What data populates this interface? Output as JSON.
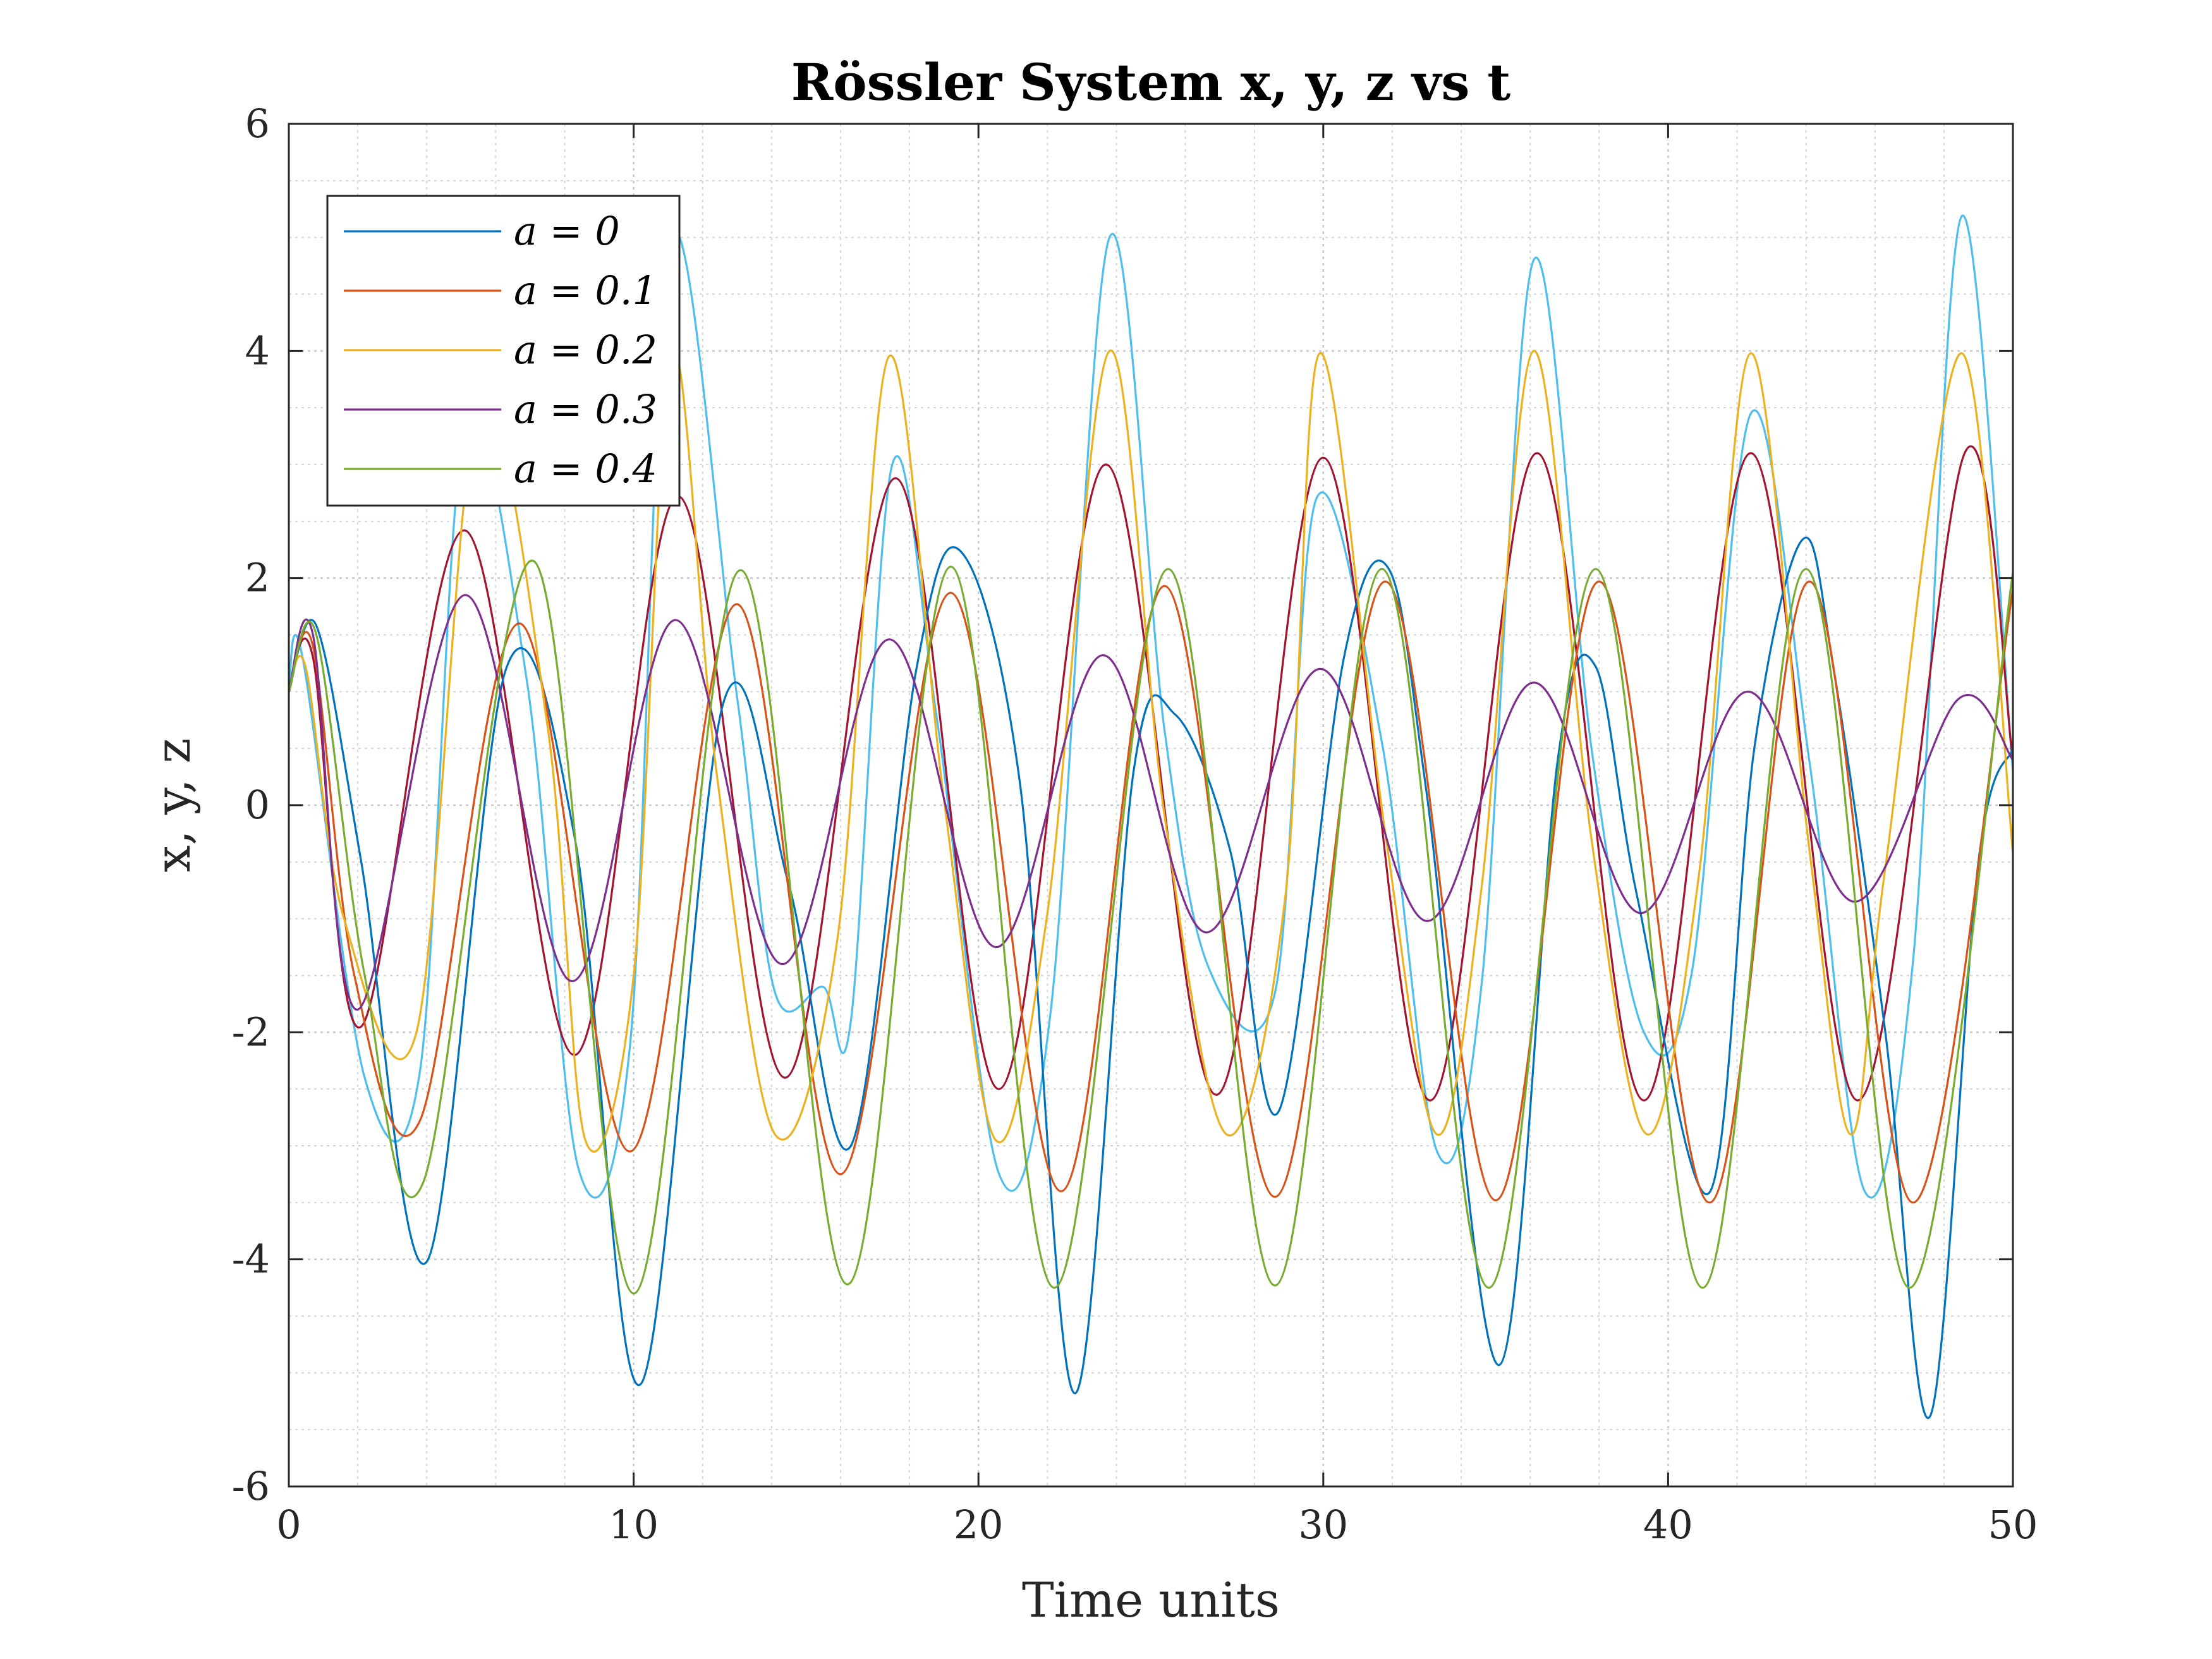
{
  "chart_data": {
    "type": "line",
    "title": "Rössler System x, y, z vs t",
    "xlabel": "Time units",
    "ylabel": "x, y, z",
    "xlim": [
      0,
      50
    ],
    "ylim": [
      -6,
      6
    ],
    "xticks": [
      0,
      10,
      20,
      30,
      40,
      50
    ],
    "yticks": [
      -6,
      -4,
      -2,
      0,
      2,
      4,
      6
    ],
    "xtick_labels": [
      "0",
      "10",
      "20",
      "30",
      "40",
      "50"
    ],
    "ytick_labels": [
      "-6",
      "-4",
      "-2",
      "0",
      "2",
      "4",
      "6"
    ],
    "grid": true,
    "minor_grid": true,
    "legend_position": "top-left",
    "series": [
      {
        "name": "a = 0",
        "color": "#0072BD",
        "type": "legend",
        "x": [
          0,
          0.8,
          2.1,
          4.0,
          6.3,
          8.3,
          10.2,
          12.6,
          14.5,
          16.3,
          18.2,
          19.5,
          21.2,
          22.8,
          24.5,
          25.7,
          27.3,
          28.7,
          30.6,
          31.9,
          33.0,
          35.1,
          36.8,
          37.9,
          39.1,
          41.2,
          42.5,
          43.9,
          44.8,
          46.3,
          47.6,
          49.0,
          50
        ],
        "values": [
          1.0,
          1.58,
          -0.5,
          -4.02,
          1.2,
          -0.3,
          -5.1,
          0.9,
          -0.7,
          -3.0,
          1.2,
          2.23,
          0.2,
          -5.18,
          0.3,
          0.8,
          -0.4,
          -2.7,
          1.3,
          2.08,
          0.1,
          -4.93,
          0.4,
          1.22,
          -0.8,
          -3.41,
          0.5,
          2.34,
          1.2,
          -2.0,
          -5.38,
          -0.5,
          0.5
        ]
      },
      {
        "name": "a = 0.1",
        "color": "#D95319",
        "type": "legend",
        "x": [
          0,
          0.7,
          1.9,
          3.8,
          6.7,
          9.9,
          13.0,
          16.0,
          19.2,
          22.4,
          25.4,
          28.6,
          31.8,
          35.0,
          38.0,
          41.2,
          44.1,
          47.1,
          50
        ],
        "values": [
          1.0,
          1.4,
          -1.5,
          -2.78,
          1.6,
          -3.05,
          1.77,
          -3.25,
          1.87,
          -3.4,
          1.93,
          -3.45,
          1.97,
          -3.48,
          1.97,
          -3.5,
          1.97,
          -3.5,
          1.9
        ]
      },
      {
        "name": "a = 0.2",
        "color": "#EDB120",
        "type": "legend",
        "x": [
          0,
          0.5,
          1.6,
          3.7,
          5.5,
          7.5,
          8.6,
          10.0,
          11.1,
          12.4,
          14.1,
          15.9,
          17.4,
          19.0,
          20.5,
          22.0,
          23.8,
          25.4,
          27.2,
          28.9,
          29.9,
          31.8,
          33.3,
          34.6,
          36.1,
          37.8,
          39.4,
          40.9,
          42.4,
          44.1,
          45.3,
          46.3,
          48.5,
          50
        ],
        "values": [
          1.0,
          1.2,
          -1.0,
          -2.0,
          3.5,
          0.7,
          -2.95,
          -1.5,
          4.0,
          0.3,
          -2.9,
          -1.2,
          3.95,
          0.05,
          -2.95,
          -0.95,
          4.0,
          -0.1,
          -2.9,
          -0.8,
          3.98,
          -0.25,
          -2.9,
          -0.7,
          4.0,
          -0.35,
          -2.9,
          -0.6,
          3.98,
          -0.4,
          -2.9,
          -0.55,
          3.98,
          -0.42
        ]
      },
      {
        "name": "a = 0.3",
        "color": "#7E2F8E",
        "type": "legend",
        "x": [
          0,
          0.7,
          2.0,
          5.1,
          8.2,
          11.2,
          14.3,
          17.4,
          20.5,
          23.6,
          26.6,
          29.9,
          33.0,
          36.1,
          39.2,
          42.3,
          45.4,
          48.4,
          50
        ],
        "values": [
          1.0,
          1.5,
          -1.8,
          1.85,
          -1.55,
          1.63,
          -1.4,
          1.46,
          -1.25,
          1.32,
          -1.12,
          1.2,
          -1.02,
          1.08,
          -0.95,
          1.0,
          -0.85,
          0.93,
          0.4
        ]
      },
      {
        "name": "a = 0.4",
        "color": "#77AC30",
        "type": "legend",
        "x": [
          0,
          0.8,
          2.2,
          3.9,
          7.1,
          10.0,
          13.1,
          16.2,
          19.2,
          22.2,
          25.5,
          28.6,
          31.7,
          34.8,
          37.9,
          41.0,
          44.0,
          47.0,
          50
        ],
        "values": [
          1.0,
          1.5,
          -1.5,
          -3.32,
          2.15,
          -4.3,
          2.07,
          -4.22,
          2.1,
          -4.25,
          2.08,
          -4.23,
          2.08,
          -4.25,
          2.08,
          -4.25,
          2.08,
          -4.25,
          2.05
        ]
      }
    ],
    "unlabeled_series": [
      {
        "color": "#4DBEEE",
        "x": [
          0,
          0.4,
          2.2,
          3.8,
          5.1,
          6.9,
          8.4,
          9.9,
          11.1,
          13.0,
          14.1,
          15.5,
          16.3,
          17.5,
          18.8,
          20.6,
          22.1,
          23.8,
          25.4,
          26.7,
          28.6,
          29.8,
          31.7,
          33.3,
          34.6,
          36.1,
          37.8,
          39.3,
          40.7,
          42.4,
          44.1,
          45.7,
          47.1,
          48.5,
          50
        ],
        "values": [
          1.0,
          1.3,
          -2.4,
          -2.35,
          3.3,
          1.1,
          -3.2,
          -2.1,
          5.0,
          0.95,
          -1.65,
          -1.6,
          -1.9,
          3.0,
          0.75,
          -3.25,
          -1.8,
          5.0,
          0.65,
          -1.45,
          -1.65,
          2.7,
          0.55,
          -3.05,
          -1.55,
          4.8,
          0.45,
          -2.0,
          -1.45,
          3.45,
          0.38,
          -3.4,
          -1.38,
          5.18,
          0.3
        ]
      },
      {
        "color": "#A2142F",
        "x": [
          0,
          0.7,
          2.1,
          5.1,
          8.3,
          11.3,
          14.4,
          17.6,
          20.6,
          23.7,
          26.9,
          30.0,
          33.1,
          36.2,
          39.3,
          42.4,
          45.5,
          48.6,
          50
        ],
        "values": [
          1.0,
          1.3,
          -1.95,
          2.42,
          -2.2,
          2.72,
          -2.4,
          2.88,
          -2.5,
          3.0,
          -2.55,
          3.06,
          -2.6,
          3.1,
          -2.6,
          3.1,
          -2.6,
          3.1,
          0.4
        ]
      }
    ]
  },
  "legend": {
    "entries": [
      "a = 0",
      "a = 0.1",
      "a = 0.2",
      "a = 0.3",
      "a = 0.4"
    ]
  }
}
